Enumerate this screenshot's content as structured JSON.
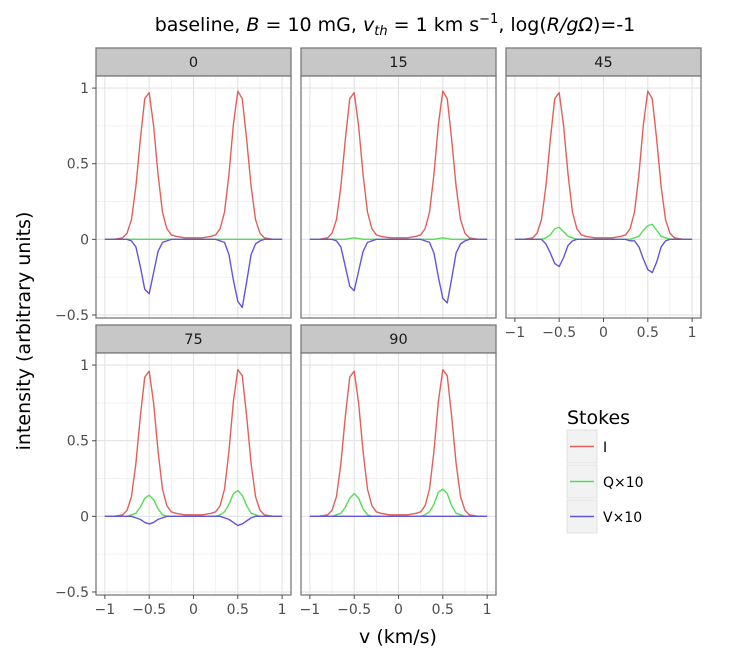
{
  "chart_data": {
    "type": "line",
    "title_parts": [
      "baseline, ",
      "B",
      " = 10 mG, ",
      "v",
      "th",
      " = 1 km s",
      "−1",
      ", log(",
      "R/gΩ",
      ")=-1"
    ],
    "xlabel": "v (km/s)",
    "ylabel": "intensity (arbitrary units)",
    "xlim": [
      -1.1,
      1.1
    ],
    "ylim": [
      -0.52,
      1.08
    ],
    "x_ticks": [
      -1,
      -0.5,
      0,
      0.5,
      1
    ],
    "x_tick_labels": [
      "−1",
      "−0.5",
      "0",
      "0.5",
      "1"
    ],
    "y_ticks": [
      -0.5,
      0,
      0.5,
      1
    ],
    "y_tick_labels": [
      "−0.5",
      "0",
      "0.5",
      "1"
    ],
    "legend": {
      "title": "Stokes",
      "entries": [
        {
          "label": "I",
          "color": "#e0605a"
        },
        {
          "label": "Q×10",
          "color": "#55dd55"
        },
        {
          "label": "V×10",
          "color": "#6155d9"
        }
      ]
    },
    "x": [
      -1.0,
      -0.9,
      -0.8,
      -0.75,
      -0.7,
      -0.65,
      -0.6,
      -0.55,
      -0.5,
      -0.45,
      -0.4,
      -0.35,
      -0.3,
      -0.25,
      -0.2,
      -0.1,
      0.0,
      0.1,
      0.2,
      0.25,
      0.3,
      0.35,
      0.4,
      0.45,
      0.5,
      0.55,
      0.6,
      0.65,
      0.7,
      0.75,
      0.8,
      0.9,
      1.0
    ],
    "panels": [
      {
        "label": "0",
        "series": [
          {
            "name": "I",
            "values": [
              0,
              0,
              0.01,
              0.04,
              0.13,
              0.35,
              0.66,
              0.93,
              0.97,
              0.75,
              0.43,
              0.18,
              0.07,
              0.03,
              0.02,
              0.01,
              0.01,
              0.01,
              0.02,
              0.03,
              0.07,
              0.18,
              0.43,
              0.76,
              0.98,
              0.93,
              0.66,
              0.35,
              0.13,
              0.04,
              0.01,
              0,
              0
            ]
          },
          {
            "name": "Q×10",
            "values": [
              0,
              0,
              0,
              0,
              0,
              0,
              0,
              0,
              0,
              0,
              0,
              0,
              0,
              0,
              0,
              0,
              0,
              0,
              0,
              0,
              0,
              0,
              0,
              0,
              0,
              0,
              0,
              0,
              0,
              0,
              0,
              0,
              0
            ]
          },
          {
            "name": "V×10",
            "values": [
              0,
              0,
              0,
              0,
              -0.01,
              -0.05,
              -0.18,
              -0.33,
              -0.36,
              -0.22,
              -0.08,
              -0.02,
              -0.01,
              0,
              0,
              0,
              0,
              0,
              0,
              0,
              -0.01,
              -0.02,
              -0.1,
              -0.27,
              -0.41,
              -0.45,
              -0.28,
              -0.1,
              -0.03,
              -0.01,
              0,
              0,
              0
            ]
          }
        ]
      },
      {
        "label": "15",
        "series": [
          {
            "name": "I",
            "values": [
              0,
              0,
              0.01,
              0.04,
              0.13,
              0.35,
              0.66,
              0.93,
              0.97,
              0.75,
              0.43,
              0.18,
              0.07,
              0.03,
              0.02,
              0.01,
              0.01,
              0.01,
              0.02,
              0.03,
              0.07,
              0.18,
              0.43,
              0.76,
              0.98,
              0.93,
              0.66,
              0.35,
              0.13,
              0.04,
              0.01,
              0,
              0
            ]
          },
          {
            "name": "Q×10",
            "values": [
              0,
              0,
              0,
              0,
              0,
              0,
              0,
              0.005,
              0.01,
              0.005,
              0,
              0,
              0,
              0,
              0,
              0,
              0,
              0,
              0,
              0,
              0,
              0,
              0,
              0.005,
              0.01,
              0.005,
              0,
              0,
              0,
              0,
              0,
              0,
              0
            ]
          },
          {
            "name": "V×10",
            "values": [
              0,
              0,
              0,
              0,
              -0.01,
              -0.05,
              -0.18,
              -0.31,
              -0.34,
              -0.21,
              -0.08,
              -0.02,
              -0.01,
              0,
              0,
              0,
              0,
              0,
              0,
              0,
              -0.01,
              -0.02,
              -0.09,
              -0.25,
              -0.39,
              -0.42,
              -0.26,
              -0.09,
              -0.03,
              -0.01,
              0,
              0,
              0
            ]
          }
        ]
      },
      {
        "label": "45",
        "series": [
          {
            "name": "I",
            "values": [
              0,
              0,
              0.01,
              0.04,
              0.13,
              0.35,
              0.66,
              0.93,
              0.97,
              0.75,
              0.43,
              0.18,
              0.07,
              0.03,
              0.02,
              0.01,
              0.01,
              0.01,
              0.02,
              0.03,
              0.07,
              0.18,
              0.43,
              0.76,
              0.98,
              0.93,
              0.66,
              0.35,
              0.13,
              0.04,
              0.01,
              0,
              0
            ]
          },
          {
            "name": "Q×10",
            "values": [
              0,
              0,
              0,
              0,
              0,
              0.01,
              0.03,
              0.07,
              0.08,
              0.05,
              0.02,
              0.01,
              0,
              0,
              0,
              0,
              0,
              0,
              0,
              0,
              0,
              0.01,
              0.02,
              0.06,
              0.09,
              0.1,
              0.06,
              0.02,
              0.01,
              0,
              0,
              0,
              0
            ]
          },
          {
            "name": "V×10",
            "values": [
              0,
              0,
              0,
              0,
              0,
              -0.03,
              -0.09,
              -0.16,
              -0.18,
              -0.12,
              -0.04,
              -0.01,
              0,
              0,
              0,
              0,
              0,
              0,
              0,
              0,
              -0.01,
              -0.01,
              -0.05,
              -0.13,
              -0.2,
              -0.22,
              -0.15,
              -0.05,
              -0.01,
              0,
              0,
              0,
              0
            ]
          }
        ]
      },
      {
        "label": "75",
        "series": [
          {
            "name": "I",
            "values": [
              0,
              0,
              0.01,
              0.04,
              0.13,
              0.35,
              0.66,
              0.92,
              0.96,
              0.75,
              0.43,
              0.18,
              0.07,
              0.03,
              0.02,
              0.01,
              0.01,
              0.01,
              0.02,
              0.03,
              0.07,
              0.18,
              0.43,
              0.76,
              0.97,
              0.93,
              0.66,
              0.35,
              0.13,
              0.04,
              0.01,
              0,
              0
            ]
          },
          {
            "name": "Q×10",
            "values": [
              0,
              0,
              0,
              0,
              0.01,
              0.02,
              0.06,
              0.12,
              0.14,
              0.11,
              0.05,
              0.01,
              0,
              0,
              0,
              0,
              0,
              0,
              0,
              0,
              0.01,
              0.03,
              0.08,
              0.15,
              0.17,
              0.14,
              0.07,
              0.02,
              0.01,
              0,
              0,
              0,
              0
            ]
          },
          {
            "name": "V×10",
            "values": [
              0,
              0,
              0,
              0,
              0,
              -0.01,
              -0.02,
              -0.04,
              -0.05,
              -0.04,
              -0.02,
              -0.01,
              0,
              0,
              0,
              0,
              0,
              0,
              0,
              0,
              0,
              -0.01,
              -0.02,
              -0.04,
              -0.06,
              -0.05,
              -0.03,
              -0.01,
              0,
              0,
              0,
              0,
              0
            ]
          }
        ]
      },
      {
        "label": "90",
        "series": [
          {
            "name": "I",
            "values": [
              0,
              0,
              0.01,
              0.04,
              0.13,
              0.35,
              0.66,
              0.92,
              0.96,
              0.75,
              0.43,
              0.18,
              0.07,
              0.03,
              0.02,
              0.01,
              0.01,
              0.01,
              0.02,
              0.03,
              0.07,
              0.18,
              0.43,
              0.76,
              0.97,
              0.93,
              0.66,
              0.35,
              0.13,
              0.04,
              0.01,
              0,
              0
            ]
          },
          {
            "name": "Q×10",
            "values": [
              0,
              0,
              0,
              0,
              0.01,
              0.02,
              0.06,
              0.12,
              0.15,
              0.12,
              0.05,
              0.01,
              0,
              0,
              0,
              0,
              0,
              0,
              0,
              0,
              0.01,
              0.03,
              0.08,
              0.16,
              0.18,
              0.15,
              0.07,
              0.02,
              0.01,
              0,
              0,
              0,
              0
            ]
          },
          {
            "name": "V×10",
            "values": [
              0,
              0,
              0,
              0,
              0,
              0,
              0,
              0,
              0,
              0,
              0,
              0,
              0,
              0,
              0,
              0,
              0,
              0,
              0,
              0,
              0,
              0,
              0,
              0,
              0,
              0,
              0,
              0,
              0,
              0,
              0,
              0,
              0
            ]
          }
        ]
      }
    ]
  }
}
